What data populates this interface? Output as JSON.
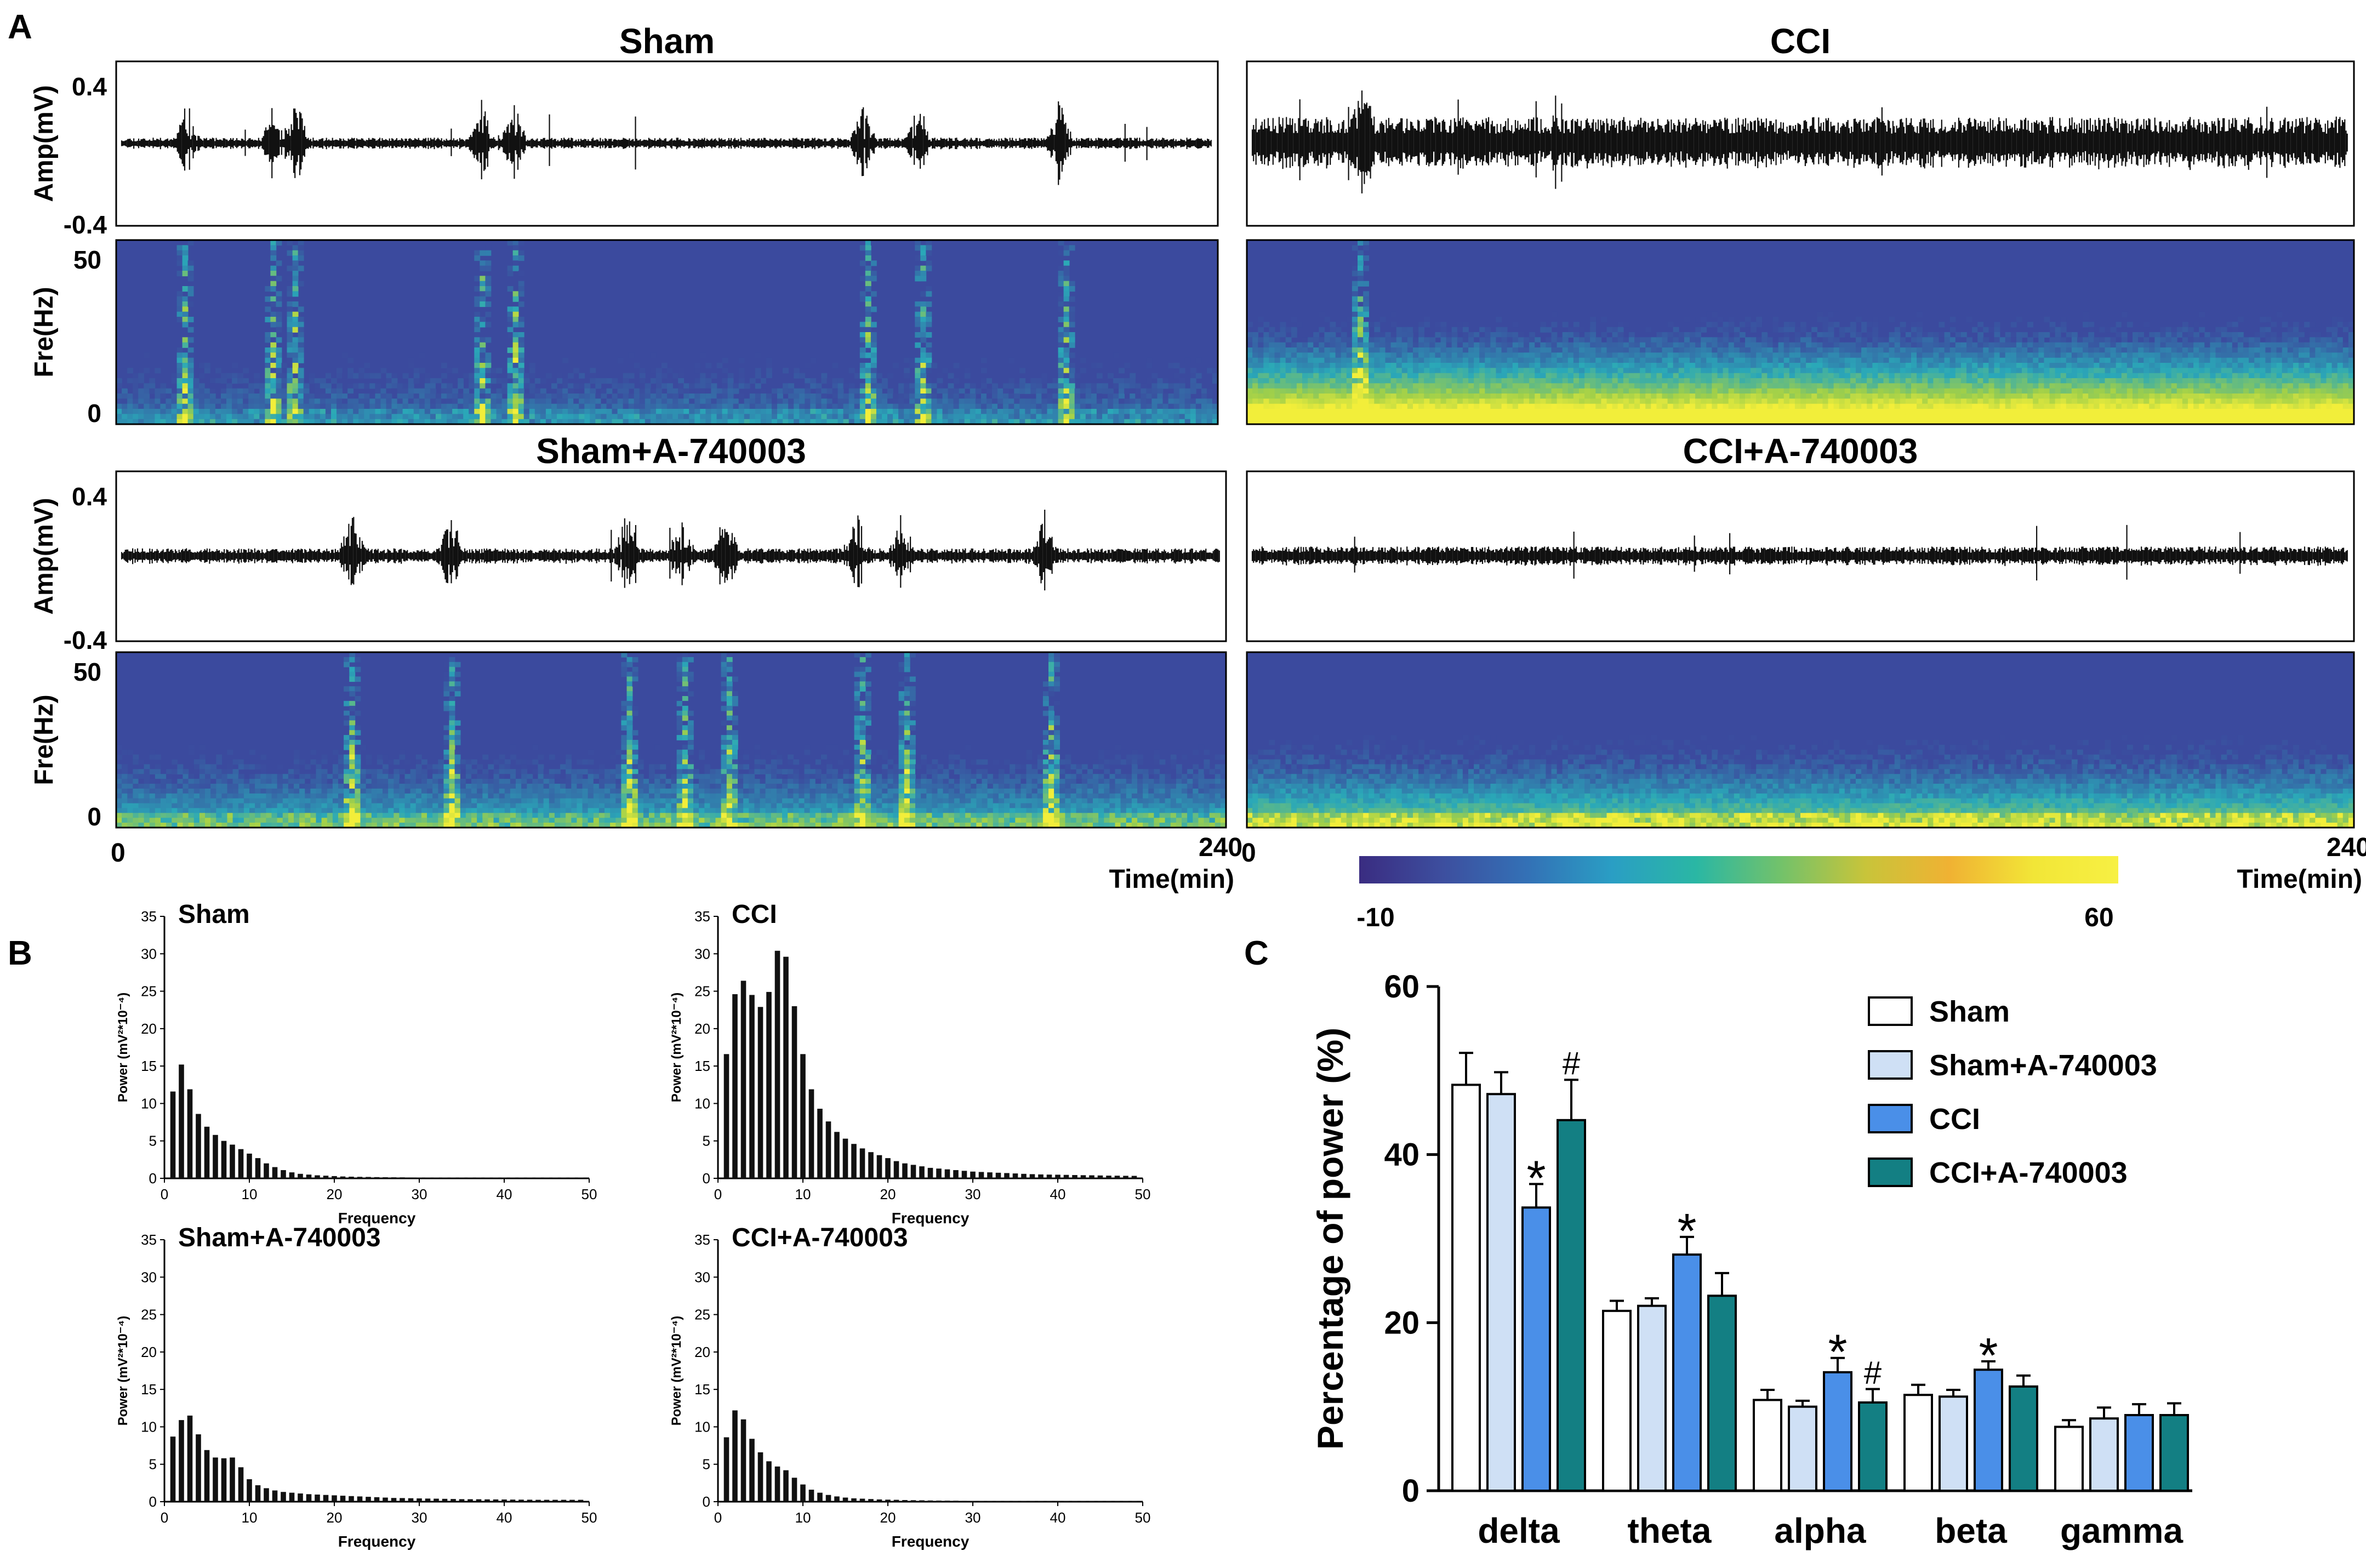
{
  "panel_labels": {
    "a": "A",
    "b": "B",
    "c": "C"
  },
  "colors": {
    "trace": "#111111",
    "spectro_low": "#3b4a9e",
    "spectro_high": "#f2ee3a",
    "bar_sham": "#ffffff",
    "bar_sham_a": "#cfe0f5",
    "bar_cci": "#4a8fe8",
    "bar_cci_a": "#137f83"
  },
  "colorbar": {
    "min_label": "-10",
    "max_label": "60",
    "stops": [
      "#3a2c81",
      "#3d4f9f",
      "#3371b6",
      "#2a9ec4",
      "#2ab7a4",
      "#73c26a",
      "#c8c43a",
      "#f0b233",
      "#f2e637",
      "#f7f043"
    ]
  },
  "panel_a": {
    "amp_label": "Amp(mV)",
    "fre_label": "Fre(Hz)",
    "amp_ticks": [
      "0.4",
      "-0.4"
    ],
    "fre_ticks": [
      "50",
      "0"
    ],
    "time_start": "0",
    "time_end": "240",
    "time_label": "Time(min)",
    "recordings": [
      {
        "title": "Sham",
        "noise": 0.1,
        "bursts": [
          0.06,
          0.14,
          0.16,
          0.33,
          0.36,
          0.68,
          0.73,
          0.86
        ],
        "lowband": 0.18,
        "seed": 11
      },
      {
        "title": "CCI",
        "noise": 0.45,
        "bursts": [
          0.1
        ],
        "lowband": 0.72,
        "seed": 23
      },
      {
        "title": "Sham+A-740003",
        "noise": 0.13,
        "bursts": [
          0.21,
          0.3,
          0.46,
          0.51,
          0.55,
          0.67,
          0.71,
          0.84
        ],
        "lowband": 0.3,
        "seed": 37
      },
      {
        "title": "CCI+A-740003",
        "noise": 0.16,
        "bursts": [],
        "lowband": 0.42,
        "seed": 51
      }
    ]
  },
  "panel_b": {
    "ylabel": "Power (mV²*10⁻⁴)",
    "xlabel": "Frequency",
    "yticks": [
      "0",
      "5",
      "10",
      "15",
      "20",
      "25",
      "30",
      "35"
    ],
    "xticks": [
      "0",
      "10",
      "20",
      "30",
      "40",
      "50"
    ],
    "charts": [
      {
        "title": "Sham",
        "values": [
          11.6,
          15.2,
          11.9,
          8.6,
          6.9,
          5.8,
          5.0,
          4.5,
          3.9,
          3.3,
          2.7,
          2.0,
          1.5,
          1.1,
          0.8,
          0.6,
          0.5,
          0.4,
          0.35,
          0.3,
          0.25,
          0.22,
          0.2,
          0.18,
          0.16,
          0.15,
          0.14,
          0.13,
          0.12,
          0.11,
          0.1,
          0.1,
          0.1,
          0.1,
          0.1,
          0.1,
          0.1,
          0.1,
          0.1,
          0.1,
          0.1,
          0.1,
          0.1,
          0.1,
          0.1,
          0.1,
          0.1,
          0.1,
          0.1
        ]
      },
      {
        "title": "CCI",
        "values": [
          16.6,
          24.6,
          26.4,
          24.5,
          22.9,
          24.9,
          30.4,
          29.6,
          23.0,
          16.6,
          11.9,
          9.3,
          7.6,
          6.2,
          5.3,
          4.6,
          4.0,
          3.5,
          3.1,
          2.7,
          2.3,
          2.0,
          1.8,
          1.6,
          1.4,
          1.3,
          1.2,
          1.1,
          1.0,
          0.9,
          0.85,
          0.8,
          0.75,
          0.7,
          0.65,
          0.6,
          0.56,
          0.52,
          0.5,
          0.48,
          0.46,
          0.44,
          0.42,
          0.4,
          0.38,
          0.36,
          0.35,
          0.34,
          0.33
        ]
      },
      {
        "title": "Sham+A-740003",
        "values": [
          8.7,
          10.9,
          11.5,
          9.0,
          6.9,
          5.9,
          5.8,
          5.9,
          4.6,
          3.0,
          2.2,
          1.8,
          1.5,
          1.3,
          1.2,
          1.1,
          1.0,
          0.95,
          0.9,
          0.85,
          0.8,
          0.75,
          0.7,
          0.65,
          0.6,
          0.55,
          0.5,
          0.48,
          0.46,
          0.44,
          0.42,
          0.4,
          0.38,
          0.36,
          0.34,
          0.33,
          0.32,
          0.31,
          0.3,
          0.29,
          0.28,
          0.27,
          0.26,
          0.25,
          0.25,
          0.25,
          0.25,
          0.25,
          0.25
        ]
      },
      {
        "title": "CCI+A-740003",
        "values": [
          8.6,
          12.2,
          11.0,
          8.4,
          6.6,
          5.4,
          4.7,
          4.2,
          3.2,
          2.3,
          1.6,
          1.2,
          0.9,
          0.7,
          0.55,
          0.45,
          0.4,
          0.35,
          0.3,
          0.27,
          0.25,
          0.22,
          0.2,
          0.18,
          0.16,
          0.15,
          0.14,
          0.13,
          0.12,
          0.11,
          0.1,
          0.1,
          0.1,
          0.1,
          0.1,
          0.1,
          0.1,
          0.1,
          0.1,
          0.1,
          0.1,
          0.1,
          0.1,
          0.1,
          0.1,
          0.1,
          0.1,
          0.1,
          0.1
        ]
      }
    ]
  },
  "chart_data": {
    "type": "bar",
    "ylabel": "Percentage of power (%)",
    "xlabel": "",
    "ylim": [
      0,
      60
    ],
    "yticks": [
      "0",
      "20",
      "40",
      "60"
    ],
    "categories": [
      "delta",
      "theta",
      "alpha",
      "beta",
      "gamma"
    ],
    "series": [
      {
        "name": "Sham",
        "values": [
          48.3,
          21.4,
          10.8,
          11.4,
          7.6
        ],
        "errors": [
          3.8,
          1.2,
          1.2,
          1.2,
          0.8
        ],
        "marks": [
          "",
          "",
          "",
          "",
          ""
        ]
      },
      {
        "name": "Sham+A-740003",
        "values": [
          47.2,
          22.0,
          10.0,
          11.2,
          8.6
        ],
        "errors": [
          2.6,
          0.9,
          0.7,
          0.8,
          1.3
        ],
        "marks": [
          "",
          "",
          "",
          "",
          ""
        ]
      },
      {
        "name": "CCI",
        "values": [
          33.7,
          28.1,
          14.1,
          14.4,
          9.0
        ],
        "errors": [
          2.8,
          2.1,
          1.7,
          1.0,
          1.3
        ],
        "marks": [
          "*",
          "*",
          "*",
          "*",
          ""
        ]
      },
      {
        "name": "CCI+A-740003",
        "values": [
          44.1,
          23.2,
          10.5,
          12.4,
          9.0
        ],
        "errors": [
          4.8,
          2.7,
          1.6,
          1.3,
          1.4
        ],
        "marks": [
          "#",
          "",
          "#",
          "",
          ""
        ]
      }
    ],
    "legend": "top-right"
  }
}
